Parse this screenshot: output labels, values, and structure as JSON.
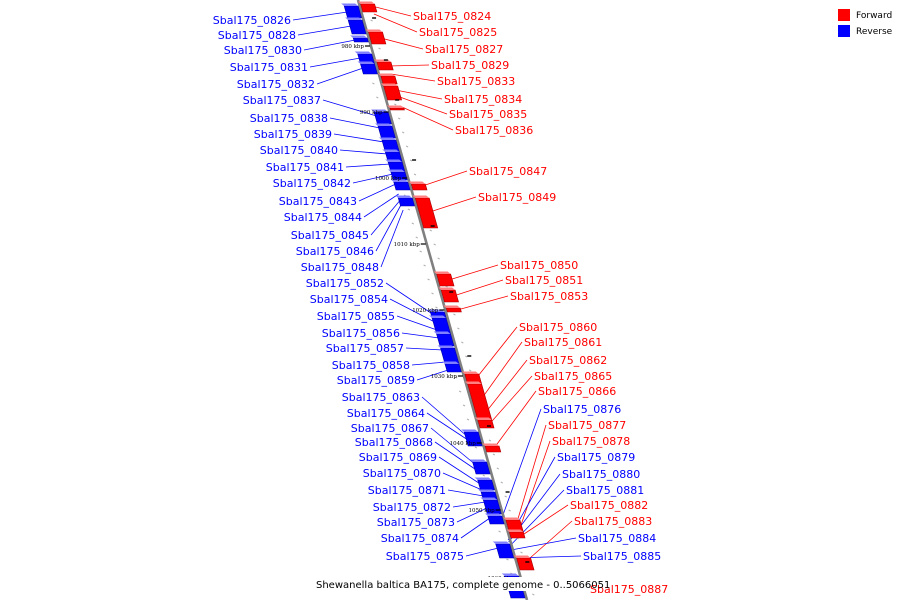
{
  "caption": "Shewanella baltica BA175, complete genome - 0..5066051",
  "colors": {
    "forward": "#ff0000",
    "reverse": "#0000ff",
    "axis": "#808080"
  },
  "legend": [
    {
      "label": "Forward",
      "color": "#ff0000"
    },
    {
      "label": "Reverse",
      "color": "#0000ff"
    }
  ],
  "ticks": [
    "980 kbp",
    "990 kbp",
    "1000 kbp",
    "1010 kbp",
    "1020 kbp",
    "1030 kbp",
    "1040 kbp",
    "1050 kbp",
    "1060 kbp"
  ],
  "genes_forward": [
    "Sbal175_0824",
    "Sbal175_0825",
    "Sbal175_0827",
    "Sbal175_0829",
    "Sbal175_0833",
    "Sbal175_0834",
    "Sbal175_0835",
    "Sbal175_0836",
    "Sbal175_0847",
    "Sbal175_0849",
    "Sbal175_0850",
    "Sbal175_0851",
    "Sbal175_0853",
    "Sbal175_0860",
    "Sbal175_0861",
    "Sbal175_0862",
    "Sbal175_0865",
    "Sbal175_0866",
    "Sbal175_0877",
    "Sbal175_0878",
    "Sbal175_0882",
    "Sbal175_0883",
    "Sbal175_0887"
  ],
  "genes_reverse_right": [
    "Sbal175_0876",
    "Sbal175_0879",
    "Sbal175_0880",
    "Sbal175_0881",
    "Sbal175_0884",
    "Sbal175_0885"
  ],
  "genes_reverse_left": [
    "Sbal175_0826",
    "Sbal175_0828",
    "Sbal175_0830",
    "Sbal175_0831",
    "Sbal175_0832",
    "Sbal175_0837",
    "Sbal175_0838",
    "Sbal175_0839",
    "Sbal175_0840",
    "Sbal175_0841",
    "Sbal175_0842",
    "Sbal175_0843",
    "Sbal175_0844",
    "Sbal175_0845",
    "Sbal175_0846",
    "Sbal175_0848",
    "Sbal175_0852",
    "Sbal175_0854",
    "Sbal175_0855",
    "Sbal175_0856",
    "Sbal175_0857",
    "Sbal175_0858",
    "Sbal175_0859",
    "Sbal175_0863",
    "Sbal175_0864",
    "Sbal175_0867",
    "Sbal175_0868",
    "Sbal175_0869",
    "Sbal175_0870",
    "Sbal175_0871",
    "Sbal175_0872",
    "Sbal175_0873",
    "Sbal175_0874",
    "Sbal175_0875"
  ]
}
